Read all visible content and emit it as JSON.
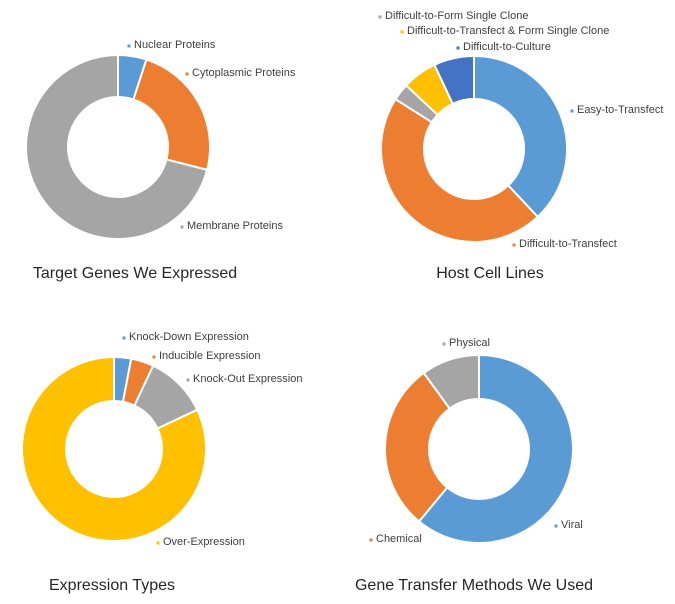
{
  "chart_data": [
    {
      "type": "donut",
      "title": "Target Genes We Expressed",
      "series": [
        {
          "name": "Nuclear Proteins",
          "value": 5,
          "color": "#5b9bd5"
        },
        {
          "name": "Cytoplasmic Proteins",
          "value": 24,
          "color": "#ed7d31"
        },
        {
          "name": "Membrane Proteins",
          "value": 71,
          "color": "#a5a5a5"
        }
      ]
    },
    {
      "type": "donut",
      "title": "Host Cell Lines",
      "series": [
        {
          "name": "Easy-to-Transfect",
          "value": 38,
          "color": "#5b9bd5"
        },
        {
          "name": "Difficult-to-Transfect",
          "value": 46,
          "color": "#ed7d31"
        },
        {
          "name": "Difficult-to-Form Single Clone",
          "value": 3,
          "color": "#a5a5a5"
        },
        {
          "name": "Difficult-to-Transfect & Form Single Clone",
          "value": 6,
          "color": "#ffc000"
        },
        {
          "name": "Difficult-to-Culture",
          "value": 7,
          "color": "#4472c4"
        }
      ]
    },
    {
      "type": "donut",
      "title": "Expression Types",
      "series": [
        {
          "name": "Knock-Down Expression",
          "value": 3,
          "color": "#5b9bd5"
        },
        {
          "name": "Inducible Expression",
          "value": 4,
          "color": "#ed7d31"
        },
        {
          "name": "Knock-Out Expression",
          "value": 11,
          "color": "#a5a5a5"
        },
        {
          "name": "Over-Expression",
          "value": 82,
          "color": "#ffc000"
        }
      ]
    },
    {
      "type": "donut",
      "title": "Gene Transfer Methods We Used",
      "series": [
        {
          "name": "Viral",
          "value": 61,
          "color": "#5b9bd5"
        },
        {
          "name": "Chemical",
          "value": 29,
          "color": "#ed7d31"
        },
        {
          "name": "Physical",
          "value": 10,
          "color": "#a5a5a5"
        }
      ]
    }
  ]
}
